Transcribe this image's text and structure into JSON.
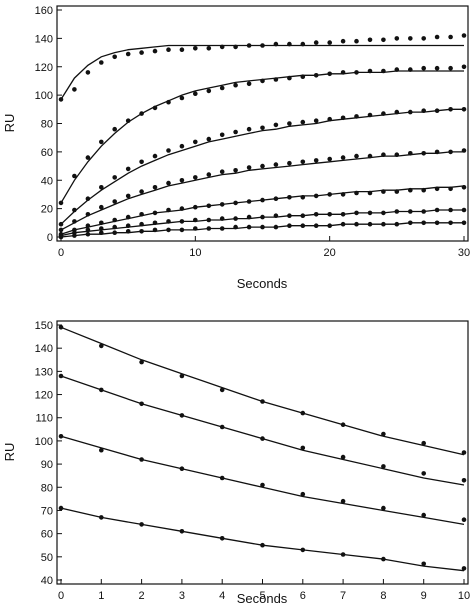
{
  "chart_data": [
    {
      "type": "scatter",
      "title": "",
      "xlabel": "Seconds",
      "ylabel": "RU",
      "xlim": [
        0,
        30
      ],
      "ylim": [
        0,
        160
      ],
      "xticks": [
        0,
        10,
        20,
        30
      ],
      "yticks": [
        0,
        20,
        40,
        60,
        80,
        100,
        120,
        140,
        160
      ],
      "grid": false,
      "legend": "none",
      "marker_color": "#111111",
      "line_color": "#111111",
      "x": [
        0,
        1,
        2,
        3,
        4,
        5,
        6,
        7,
        8,
        9,
        10,
        11,
        12,
        13,
        14,
        15,
        16,
        17,
        18,
        19,
        20,
        21,
        22,
        23,
        24,
        25,
        26,
        27,
        28,
        29,
        30
      ],
      "series": [
        {
          "points": [
            97,
            104,
            116,
            123,
            127,
            129,
            130,
            131,
            132,
            132,
            133,
            133,
            134,
            134,
            135,
            135,
            136,
            136,
            136,
            137,
            137,
            138,
            138,
            139,
            139,
            140,
            140,
            140,
            141,
            141,
            142
          ],
          "fit": [
            97,
            112,
            121,
            127,
            130,
            132,
            133,
            134,
            135,
            135,
            135,
            135,
            135,
            135,
            135,
            135,
            135,
            135,
            135,
            135,
            135,
            135,
            135,
            135,
            135,
            135,
            135,
            135,
            135,
            135,
            135
          ]
        },
        {
          "points": [
            24,
            43,
            56,
            67,
            76,
            82,
            87,
            91,
            95,
            98,
            101,
            103,
            105,
            107,
            108,
            110,
            111,
            112,
            113,
            114,
            115,
            116,
            116,
            117,
            117,
            118,
            118,
            119,
            119,
            119,
            120
          ],
          "fit": [
            24,
            40,
            53,
            64,
            73,
            81,
            87,
            92,
            96,
            100,
            103,
            105,
            107,
            109,
            110,
            111,
            112,
            113,
            114,
            114,
            115,
            115,
            116,
            116,
            116,
            117,
            117,
            117,
            117,
            117,
            117
          ]
        },
        {
          "points": [
            9,
            19,
            27,
            35,
            42,
            48,
            53,
            57,
            61,
            64,
            67,
            69,
            72,
            74,
            76,
            77,
            79,
            80,
            81,
            82,
            83,
            84,
            85,
            86,
            87,
            88,
            88,
            89,
            89,
            90,
            90
          ],
          "fit": [
            9,
            18,
            26,
            33,
            39,
            45,
            50,
            54,
            58,
            61,
            64,
            67,
            69,
            71,
            73,
            75,
            76,
            78,
            79,
            80,
            82,
            83,
            84,
            85,
            86,
            87,
            88,
            88,
            89,
            90,
            90
          ]
        },
        {
          "points": [
            5,
            11,
            16,
            21,
            25,
            29,
            32,
            35,
            38,
            40,
            42,
            44,
            46,
            47,
            49,
            50,
            51,
            52,
            53,
            54,
            55,
            56,
            57,
            57,
            58,
            58,
            59,
            59,
            60,
            60,
            61
          ],
          "fit": [
            5,
            10,
            15,
            19,
            23,
            27,
            30,
            33,
            36,
            38,
            40,
            42,
            44,
            45,
            47,
            48,
            49,
            50,
            51,
            52,
            53,
            54,
            55,
            56,
            57,
            57,
            58,
            59,
            59,
            60,
            60
          ]
        },
        {
          "points": [
            2,
            5,
            8,
            10,
            12,
            14,
            16,
            17,
            19,
            20,
            21,
            22,
            23,
            24,
            25,
            26,
            27,
            28,
            28,
            29,
            30,
            30,
            31,
            31,
            32,
            32,
            33,
            33,
            34,
            34,
            35
          ],
          "fit": [
            2,
            5,
            7,
            9,
            11,
            13,
            15,
            17,
            18,
            19,
            21,
            22,
            23,
            24,
            25,
            26,
            27,
            28,
            29,
            29,
            30,
            31,
            32,
            32,
            33,
            33,
            34,
            34,
            35,
            35,
            36
          ]
        },
        {
          "points": [
            1,
            3,
            5,
            6,
            7,
            8,
            9,
            10,
            11,
            11,
            12,
            12,
            13,
            13,
            14,
            14,
            15,
            15,
            15,
            16,
            16,
            16,
            17,
            17,
            17,
            18,
            18,
            18,
            19,
            19,
            19
          ],
          "fit": [
            1,
            3,
            4,
            5,
            6,
            7,
            8,
            9,
            10,
            11,
            11,
            12,
            12,
            13,
            13,
            14,
            14,
            15,
            15,
            16,
            16,
            16,
            17,
            17,
            17,
            18,
            18,
            18,
            19,
            19,
            19
          ]
        },
        {
          "points": [
            0,
            1,
            2,
            3,
            3,
            4,
            4,
            5,
            5,
            5,
            6,
            6,
            6,
            7,
            7,
            7,
            7,
            8,
            8,
            8,
            8,
            9,
            9,
            9,
            9,
            9,
            10,
            10,
            10,
            10,
            10
          ],
          "fit": [
            0,
            1,
            2,
            2,
            3,
            3,
            4,
            4,
            5,
            5,
            5,
            6,
            6,
            6,
            7,
            7,
            7,
            8,
            8,
            8,
            8,
            9,
            9,
            9,
            9,
            9,
            10,
            10,
            10,
            10,
            10
          ]
        }
      ]
    },
    {
      "type": "scatter",
      "title": "",
      "xlabel": "Seconds",
      "ylabel": "RU",
      "xlim": [
        0,
        10
      ],
      "ylim": [
        40,
        150
      ],
      "xticks": [
        0,
        1,
        2,
        3,
        4,
        5,
        6,
        7,
        8,
        9,
        10
      ],
      "yticks": [
        40,
        50,
        60,
        70,
        80,
        90,
        100,
        110,
        120,
        130,
        140,
        150
      ],
      "grid": false,
      "legend": "none",
      "marker_color": "#111111",
      "line_color": "#111111",
      "x": [
        0,
        1,
        2,
        3,
        4,
        5,
        6,
        7,
        8,
        9,
        10
      ],
      "series": [
        {
          "points": [
            149,
            141,
            134,
            128,
            122,
            117,
            112,
            107,
            103,
            99,
            95
          ],
          "fit": [
            149,
            142,
            135,
            129,
            123,
            117,
            112,
            107,
            102,
            98,
            94
          ]
        },
        {
          "points": [
            128,
            122,
            116,
            111,
            106,
            101,
            97,
            93,
            89,
            86,
            83
          ],
          "fit": [
            128,
            122,
            116,
            111,
            106,
            101,
            96,
            92,
            88,
            84,
            81
          ]
        },
        {
          "points": [
            102,
            96,
            92,
            88,
            84,
            81,
            77,
            74,
            71,
            68,
            66
          ],
          "fit": [
            102,
            97,
            92,
            88,
            84,
            80,
            76,
            73,
            70,
            67,
            64
          ]
        },
        {
          "points": [
            71,
            67,
            64,
            61,
            58,
            55,
            53,
            51,
            49,
            47,
            45
          ],
          "fit": [
            71,
            67,
            64,
            61,
            58,
            55,
            53,
            51,
            49,
            46,
            44
          ]
        }
      ]
    }
  ]
}
